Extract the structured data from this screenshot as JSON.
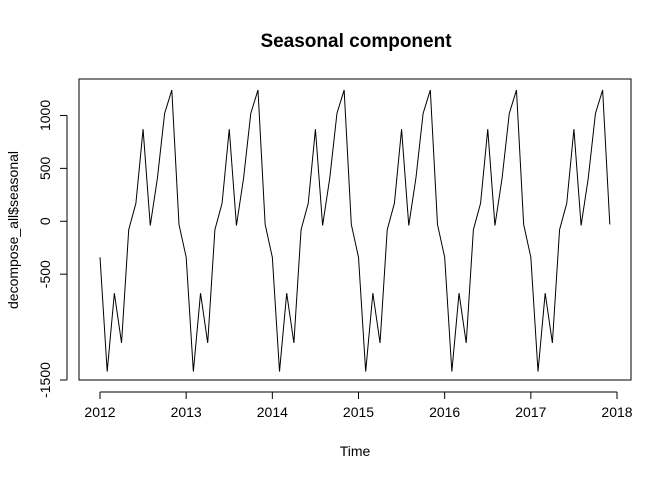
{
  "chart_data": {
    "type": "line",
    "title": "Seasonal component",
    "xlabel": "Time",
    "ylabel": "decompose_all$seasonal",
    "xlim": [
      2012,
      2018
    ],
    "ylim": [
      -1500,
      1250
    ],
    "x_ticks": [
      2012,
      2013,
      2014,
      2015,
      2016,
      2017,
      2018
    ],
    "x_tick_labels": [
      "2012",
      "2013",
      "2014",
      "2015",
      "2016",
      "2017",
      "2018"
    ],
    "y_ticks": [
      -1500,
      -500,
      0,
      500,
      1000
    ],
    "y_tick_labels": [
      "-1500",
      "-500",
      "0",
      "500",
      "1000"
    ],
    "grid": false,
    "legend": "none",
    "start": 2012,
    "frequency": 12,
    "years": 6,
    "seasonal_pattern": [
      -340,
      -1420,
      -680,
      -1150,
      -80,
      170,
      870,
      -40,
      410,
      1020,
      1240,
      -30
    ],
    "series": [
      {
        "values": [
          -340,
          -1420,
          -680,
          -1150,
          -80,
          170,
          870,
          -40,
          410,
          1020,
          1240,
          -30,
          -340,
          -1420,
          -680,
          -1150,
          -80,
          170,
          870,
          -40,
          410,
          1020,
          1240,
          -30,
          -340,
          -1420,
          -680,
          -1150,
          -80,
          170,
          870,
          -40,
          410,
          1020,
          1240,
          -30,
          -340,
          -1420,
          -680,
          -1150,
          -80,
          170,
          870,
          -40,
          410,
          1020,
          1240,
          -30,
          -340,
          -1420,
          -680,
          -1150,
          -80,
          170,
          870,
          -40,
          410,
          1020,
          1240,
          -30,
          -340,
          -1420,
          -680,
          -1150,
          -80,
          170,
          870,
          -40,
          410,
          1020,
          1240,
          -30
        ]
      }
    ]
  }
}
